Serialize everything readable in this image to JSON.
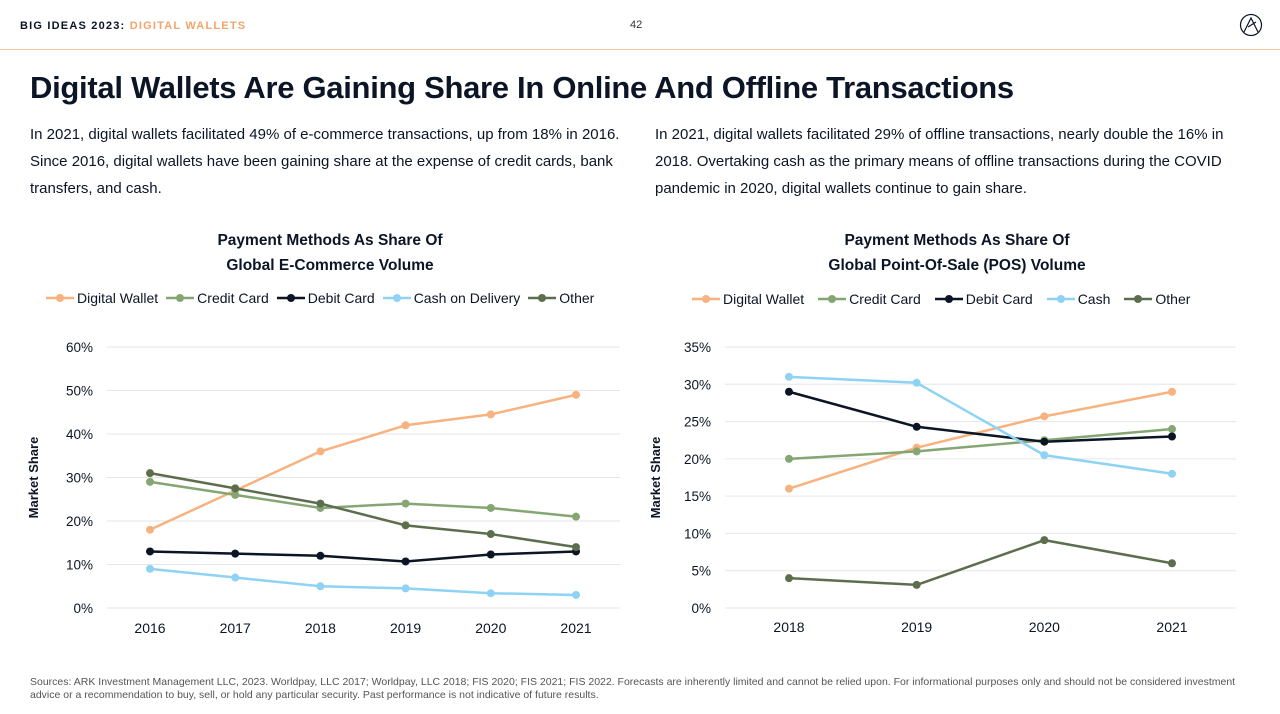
{
  "header": {
    "brand": "BIG IDEAS 2023:",
    "section": "DIGITAL WALLETS",
    "page_number": "42"
  },
  "title": "Digital Wallets Are Gaining Share In Online And Offline Transactions",
  "paragraphs": {
    "left": "In 2021, digital wallets facilitated 49% of e-commerce transactions, up from 18% in 2016. Since 2016, digital wallets have been gaining share at the expense of credit cards, bank transfers, and cash.",
    "right": "In 2021, digital wallets facilitated 29% of offline transactions, nearly double the 16% in 2018. Overtaking cash as the primary means of offline transactions during the COVID pandemic in 2020, digital wallets continue to gain share."
  },
  "footer": "Sources: ARK Investment Management LLC, 2023. Worldpay, LLC  2017; Worldpay, LLC  2018; FIS 2020; FIS 2021; FIS 2022. Forecasts are inherently limited and cannot be relied upon. For informational purposes only and should not be considered investment advice or a recommendation to buy, sell, or hold any particular security. Past performance is not indicative of future results.",
  "colors": {
    "digital_wallet": "#f7b27f",
    "credit_card": "#85a673",
    "debit_card": "#0b1526",
    "cash": "#8fd3f4",
    "other": "#5d6e4f",
    "gridline": "#e6e6e6",
    "accent": "#f3a46c"
  },
  "chart_data": [
    {
      "type": "line",
      "title_line1": "Payment Methods As Share Of",
      "title_line2": "Global E-Commerce Volume",
      "xlabel": "",
      "ylabel": "Market Share",
      "x": [
        "2016",
        "2017",
        "2018",
        "2019",
        "2020",
        "2021"
      ],
      "ylim": [
        0,
        60
      ],
      "yticks": [
        0,
        10,
        20,
        30,
        40,
        50,
        60
      ],
      "ytick_labels": [
        "0%",
        "10%",
        "20%",
        "30%",
        "40%",
        "50%",
        "60%"
      ],
      "grid": true,
      "legend_position": "top",
      "series": [
        {
          "name": "Digital Wallet",
          "color": "#f7b27f",
          "values": [
            18,
            27,
            36,
            42,
            44.5,
            49
          ]
        },
        {
          "name": "Credit Card",
          "color": "#85a673",
          "values": [
            29,
            26,
            23,
            24,
            23,
            21
          ]
        },
        {
          "name": "Debit Card",
          "color": "#0b1526",
          "values": [
            13,
            12.5,
            12,
            10.7,
            12.3,
            13
          ]
        },
        {
          "name": "Cash on Delivery",
          "color": "#8fd3f4",
          "values": [
            9,
            7,
            5,
            4.5,
            3.4,
            3
          ]
        },
        {
          "name": "Other",
          "color": "#5d6e4f",
          "values": [
            31,
            27.5,
            24,
            19,
            17,
            14
          ]
        }
      ]
    },
    {
      "type": "line",
      "title_line1": "Payment Methods As Share Of",
      "title_line2": "Global Point-Of-Sale (POS) Volume",
      "xlabel": "",
      "ylabel": "Market Share",
      "x": [
        "2018",
        "2019",
        "2020",
        "2021"
      ],
      "ylim": [
        0,
        35
      ],
      "yticks": [
        0,
        5,
        10,
        15,
        20,
        25,
        30,
        35
      ],
      "ytick_labels": [
        "0%",
        "5%",
        "10%",
        "15%",
        "20%",
        "25%",
        "30%",
        "35%"
      ],
      "grid": true,
      "legend_position": "top",
      "series": [
        {
          "name": "Digital Wallet",
          "color": "#f7b27f",
          "values": [
            16,
            21.5,
            25.7,
            29
          ]
        },
        {
          "name": "Credit Card",
          "color": "#85a673",
          "values": [
            20,
            21,
            22.5,
            24
          ]
        },
        {
          "name": "Debit Card",
          "color": "#0b1526",
          "values": [
            29,
            24.3,
            22.3,
            23
          ]
        },
        {
          "name": "Cash",
          "color": "#8fd3f4",
          "values": [
            31,
            30.2,
            20.5,
            18
          ]
        },
        {
          "name": "Other",
          "color": "#5d6e4f",
          "values": [
            4,
            3.1,
            9.1,
            6
          ]
        }
      ]
    }
  ]
}
